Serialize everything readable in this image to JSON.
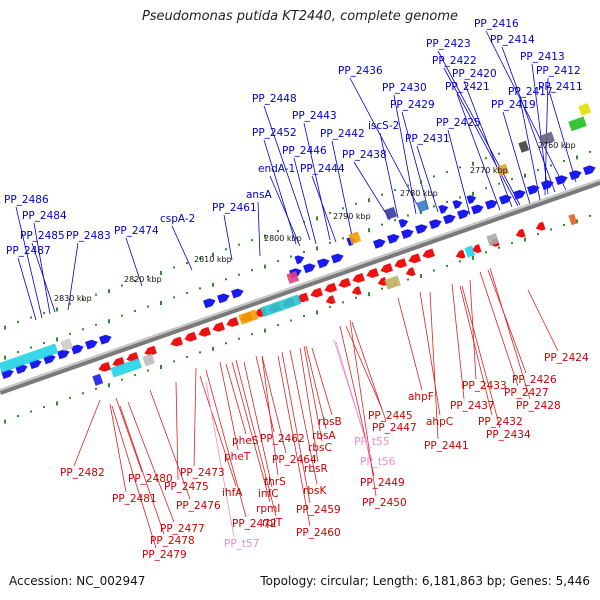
{
  "title": "Pseudomonas putida KT2440, complete genome",
  "footer": {
    "accession": "Accession: NC_002947",
    "stats": "Topology: circular; Length: 6,181,863 bp; Genes: 5,446"
  },
  "colors": {
    "top_strand_label": "#0000cc",
    "bottom_strand_label": "#cc0000",
    "rna_label": "#f08cc8",
    "backbone": "#888888",
    "tick": "#2e8b2e"
  },
  "scale_ticks": [
    "2760 kbp",
    "2770 kbp",
    "2780 kbp",
    "2790 kbp",
    "2800 kbp",
    "2810 kbp",
    "2820 kbp",
    "2830 kbp"
  ],
  "top_labels": [
    "PP_2416",
    "PP_2414",
    "PP_2423",
    "PP_2413",
    "PP_2422",
    "PP_2412",
    "PP_2436",
    "PP_2420",
    "PP_2430",
    "PP_2421",
    "PP_2417",
    "PP_2411",
    "PP_2448",
    "PP_2429",
    "PP_2419",
    "PP_2443",
    "PP_2425",
    "iscS-2",
    "PP_2452",
    "PP_2442",
    "PP_2431",
    "PP_2446",
    "PP_2438",
    "endA-1",
    "PP_2444",
    "PP_2486",
    "PP_2484",
    "PP_2485",
    "PP_2483",
    "PP_2487",
    "PP_2474",
    "cspA-2",
    "PP_2461",
    "ansA"
  ],
  "bottom_labels": [
    "PP_2424",
    "PP_2426",
    "PP_2433",
    "PP_2427",
    "ahpF",
    "PP_2437",
    "PP_2428",
    "PP_2445",
    "PP_2432",
    "ahpC",
    "rbsB",
    "PP_2447",
    "PP_2434",
    "rbsA",
    "PP_2441",
    "pheS",
    "PP_2462",
    "rbsC",
    "pheT",
    "PP_2464",
    "rbsR",
    "PP_2482",
    "PP_2473",
    "thrS",
    "PP_2480",
    "ihfA",
    "infC",
    "rbsK",
    "PP_2449",
    "PP_2475",
    "PP_2481",
    "rpmI",
    "PP_2476",
    "PP_2459",
    "PP_2450",
    "PP_2477",
    "PP_2472",
    "rplT",
    "PP_2478",
    "PP_2460",
    "PP_2479"
  ],
  "rna_labels": [
    "PP_t55",
    "PP_t56",
    "PP_t57"
  ]
}
